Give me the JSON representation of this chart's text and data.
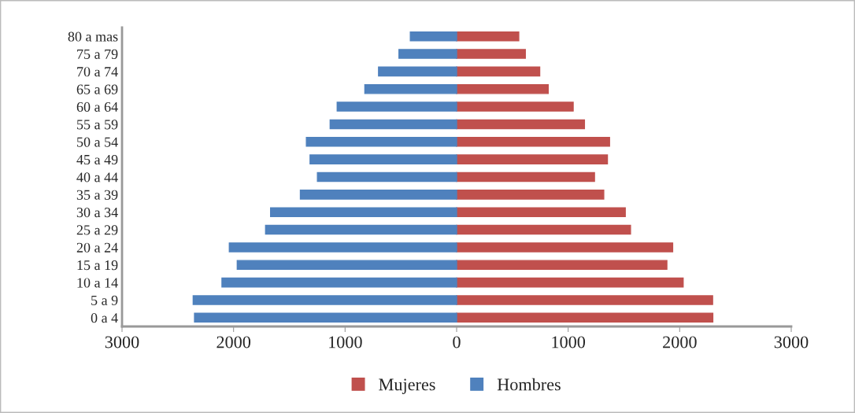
{
  "chart_data": {
    "type": "bar",
    "orientation": "horizontal",
    "categories": [
      "80 a mas",
      "75 a 79",
      "70 a 74",
      "65 a 69",
      "60 a 64",
      "55 a 59",
      "50 a 54",
      "45 a 49",
      "40 a 44",
      "35 a 39",
      "30 a 34",
      "25 a 29",
      "20 a 24",
      "15 a 19",
      "10 a 14",
      "5 a 9",
      "0 a 4"
    ],
    "series": [
      {
        "name": "Mujeres",
        "color": "#c0504d",
        "values": [
          557,
          616,
          745,
          821,
          1045,
          1146,
          1371,
          1352,
          1236,
          1319,
          1512,
          1559,
          1937,
          1885,
          2031,
          2295,
          2297
        ]
      },
      {
        "name": "Hombres",
        "color": "#4f81bd",
        "values": [
          -415,
          -517,
          -700,
          -823,
          -1071,
          -1134,
          -1347,
          -1314,
          -1248,
          -1401,
          -1668,
          -1713,
          -2038,
          -1967,
          -2104,
          -2362,
          -2350
        ]
      }
    ],
    "xlim": [
      -3000,
      3000
    ],
    "xticks": [
      {
        "value": -3000,
        "label": "3000"
      },
      {
        "value": -2000,
        "label": "2000"
      },
      {
        "value": -1000,
        "label": "1000"
      },
      0,
      1000,
      2000,
      3000
    ],
    "stacked": true,
    "grid": false,
    "legend": "bottom"
  }
}
